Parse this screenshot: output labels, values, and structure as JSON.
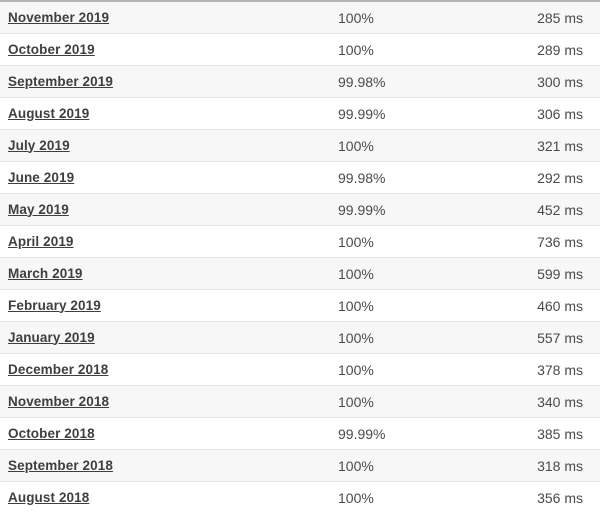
{
  "colors": {
    "row_alt_bg": "#f7f7f7",
    "row_bg": "#ffffff",
    "separator": "#e4e4e4",
    "top_border": "#b3b3b3",
    "link_text": "#3f3f3f",
    "value_text": "#4a4a4a"
  },
  "table": {
    "rows": [
      {
        "month": "November 2019",
        "uptime": "100%",
        "response_time": "285 ms"
      },
      {
        "month": "October 2019",
        "uptime": "100%",
        "response_time": "289 ms"
      },
      {
        "month": "September 2019",
        "uptime": "99.98%",
        "response_time": "300 ms"
      },
      {
        "month": "August 2019",
        "uptime": "99.99%",
        "response_time": "306 ms"
      },
      {
        "month": "July 2019",
        "uptime": "100%",
        "response_time": "321 ms"
      },
      {
        "month": "June 2019",
        "uptime": "99.98%",
        "response_time": "292 ms"
      },
      {
        "month": "May 2019",
        "uptime": "99.99%",
        "response_time": "452 ms"
      },
      {
        "month": "April 2019",
        "uptime": "100%",
        "response_time": "736 ms"
      },
      {
        "month": "March 2019",
        "uptime": "100%",
        "response_time": "599 ms"
      },
      {
        "month": "February 2019",
        "uptime": "100%",
        "response_time": "460 ms"
      },
      {
        "month": "January 2019",
        "uptime": "100%",
        "response_time": "557 ms"
      },
      {
        "month": "December 2018",
        "uptime": "100%",
        "response_time": "378 ms"
      },
      {
        "month": "November 2018",
        "uptime": "100%",
        "response_time": "340 ms"
      },
      {
        "month": "October 2018",
        "uptime": "99.99%",
        "response_time": "385 ms"
      },
      {
        "month": "September 2018",
        "uptime": "100%",
        "response_time": "318 ms"
      },
      {
        "month": "August 2018",
        "uptime": "100%",
        "response_time": "356 ms"
      }
    ]
  }
}
